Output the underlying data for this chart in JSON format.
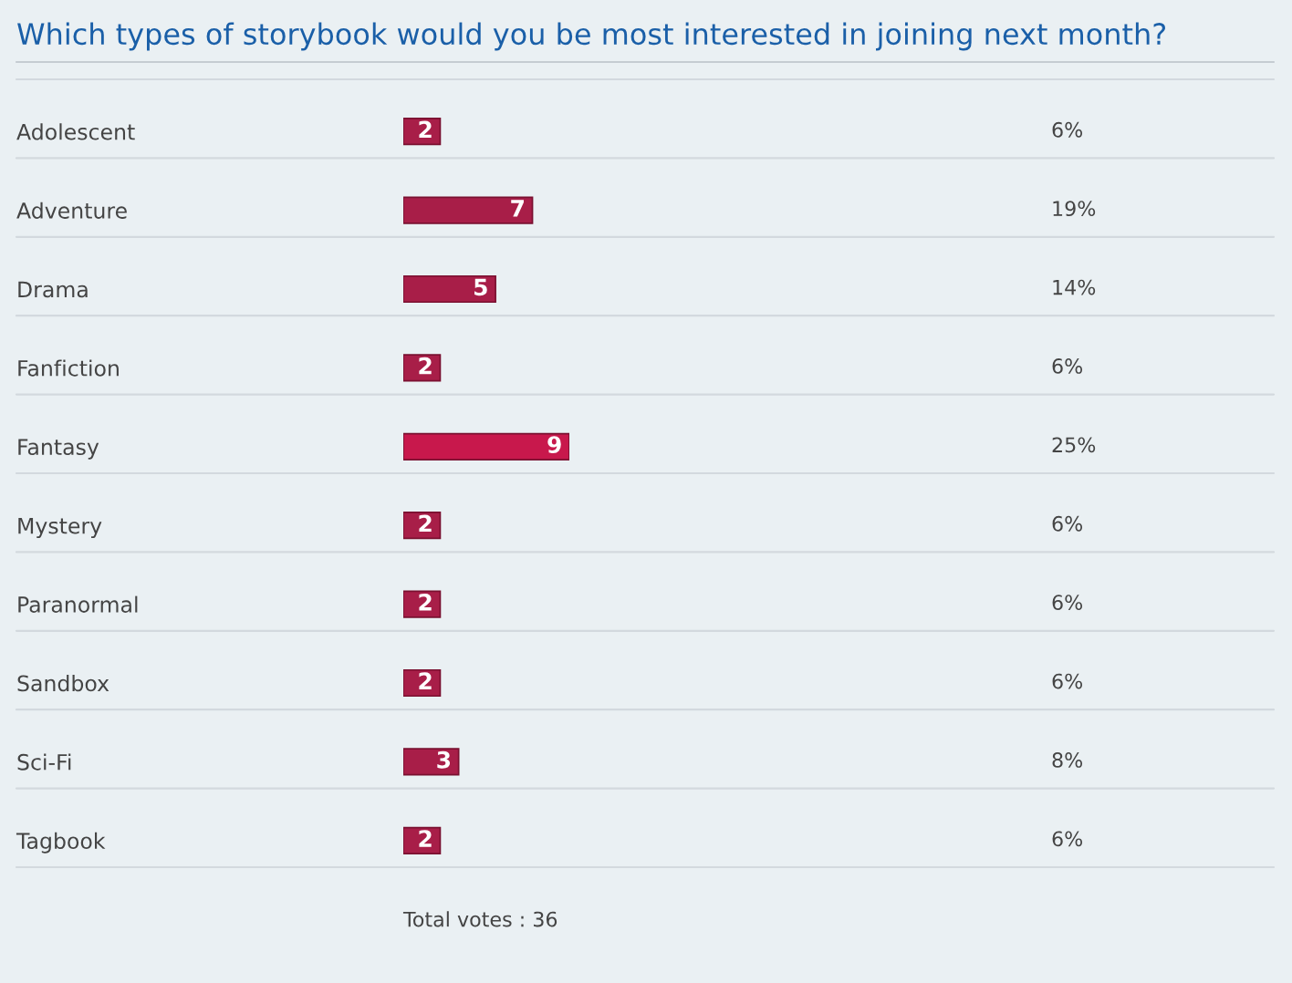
{
  "chart_data": {
    "type": "bar",
    "orientation": "horizontal",
    "title": "Which types of storybook would you be most interested in joining next month?",
    "categories": [
      "Adolescent",
      "Adventure",
      "Drama",
      "Fanfiction",
      "Fantasy",
      "Mystery",
      "Paranormal",
      "Sandbox",
      "Sci-Fi",
      "Tagbook"
    ],
    "values": [
      2,
      7,
      5,
      2,
      9,
      2,
      2,
      2,
      3,
      2
    ],
    "colors": [
      "#a81e48",
      "#a81e48",
      "#a81e48",
      "#a81e48",
      "#c8184c",
      "#a81e48",
      "#a81e48",
      "#a81e48",
      "#a81e48",
      "#a81e48"
    ],
    "data_labels": true,
    "tick_labels": "y",
    "grid": false,
    "legend": false,
    "annotations": [
      "6%",
      "19%",
      "14%",
      "6%",
      "25%",
      "6%",
      "6%",
      "6%",
      "8%",
      "6%",
      "Total votes : 36"
    ]
  }
}
